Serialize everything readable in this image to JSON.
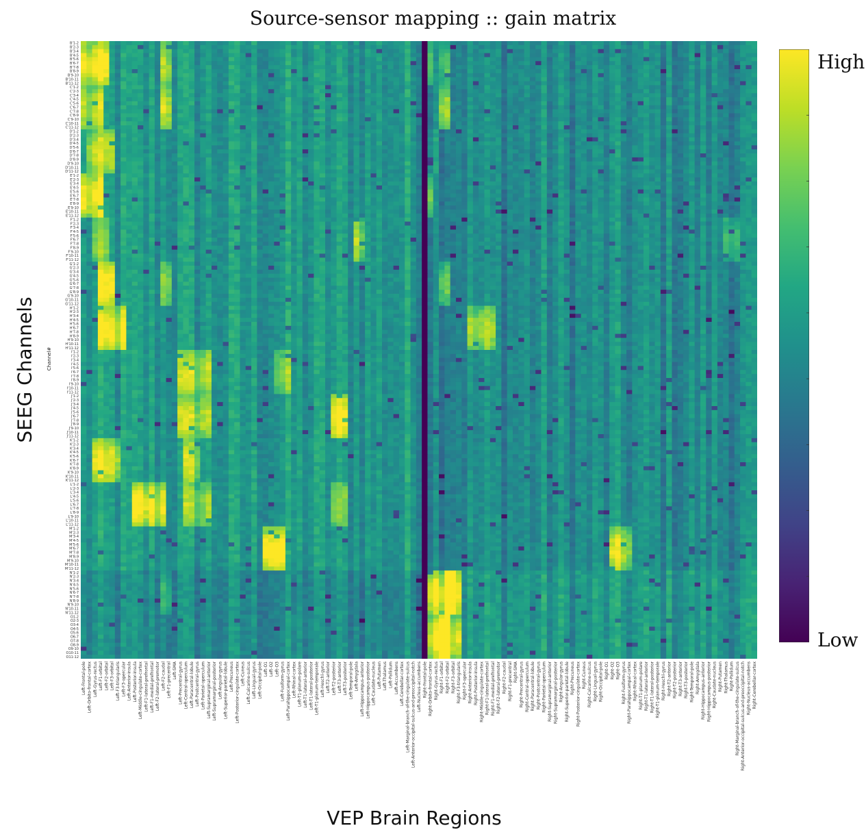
{
  "title": "Source-sensor mapping :: gain matrix",
  "xlabel": "VEP Brain Regions",
  "ylabel": "SEEG Channels",
  "ylabel_small": "Channel#",
  "colorbar": {
    "high_label": "High",
    "low_label": "Low",
    "colormap": "viridis"
  },
  "chart_data": {
    "type": "heatmap",
    "title": "Source-sensor mapping :: gain matrix",
    "xlabel": "VEP Brain Regions",
    "ylabel": "SEEG Channels",
    "colorbar": {
      "high": "High",
      "low": "Low"
    },
    "x_categories": [
      "Left-Frontal-pole",
      "Left-Orbito-frontal-cortex",
      "Left-Gyrus-rectus",
      "Left-F1-orbital",
      "Left-F2-orbital",
      "Left-F3-orbital",
      "Left-F3-triangularis",
      "Left-F3-opercular",
      "Left-Anterior-insula",
      "Left-Posterior-insula",
      "Left-Middle-cingulate-cortex",
      "Left-F1-lateral-prefrontal",
      "Left-F1-medial-prefrontal",
      "Left-F2-lateral-premotor",
      "Left-F2-caudal",
      "Left-F1-precentral",
      "Left-SMA",
      "Left-Precentral-gyrus",
      "Left-Central-operculum",
      "Left-Paracentral-lobule",
      "Left-Postcentral-gyrus",
      "Left-Parietal-operculum",
      "Left-Supramarginal-anterior",
      "Left-Supramarginal-posterior",
      "Left-Angular-gyrus",
      "Left-Superior-parietal-lobule",
      "Left-Precuneus",
      "Left-Posterior-cingulate-cortex",
      "Left-Cuneus",
      "Left-Calcarine-sulcus",
      "Left-Lingual-gyrus",
      "Left-Occipital-pole",
      "Left-O1",
      "Left-O2",
      "Left-O3",
      "Left-Fusiform-gyrus",
      "Left-Parahippocampal-cortex",
      "Left-Rhinal-cortex",
      "Left-T1-planum-polare",
      "Left-T1-lateral-anterior",
      "Left-T1-lateral-posterior",
      "Left-T1-planum-temporale",
      "Left-Heschl-gyrus",
      "Left-T2-anterior",
      "Left-T2-posterior",
      "Left-T3-anterior",
      "Left-T3-posterior",
      "Left-Temporal-pole",
      "Left-Amygdala",
      "Left-Hippocampus-anterior",
      "Left-Hippocampus-posterior",
      "Left-Caudate-nucleus",
      "Left-Putamen",
      "Left-Thalamus",
      "Left-Pallidum",
      "Left-Accumbens",
      "Left-Cerebellar-cortex",
      "Left-Marginal-branch-of-the-cingulate-sulcus",
      "Left-Anterior-occipital-sulcus-and-preoccipital-notch",
      "Left-Nucleus-accumbens",
      "Right-Frontal-pole",
      "Right-Orbito-frontal-cortex",
      "Right-Gyrus-rectus",
      "Right-F1-orbital",
      "Right-F2-orbital",
      "Right-F3-orbital",
      "Right-F3-triangularis",
      "Right-F3-opercular",
      "Right-Anterior-insula",
      "Right-Posterior-insula",
      "Right-Middle-cingulate-cortex",
      "Right-F1-lateral-prefrontal",
      "Right-F1-medial-prefrontal",
      "Right-F2-lateral-premotor",
      "Right-F2-caudal",
      "Right-F1-precentral",
      "Right-SMA",
      "Right-Precentral-gyrus",
      "Right-Central-operculum",
      "Right-Paracentral-lobule",
      "Right-Postcentral-gyrus",
      "Right-Parietal-operculum",
      "Right-Supramarginal-anterior",
      "Right-Supramarginal-posterior",
      "Right-Angular-gyrus",
      "Right-Superior-parietal-lobule",
      "Right-Precuneus",
      "Right-Posterior-cingulate-cortex",
      "Right-Cuneus",
      "Right-Calcarine-sulcus",
      "Right-Lingual-gyrus",
      "Right-Occipital-pole",
      "Right-O1",
      "Right-O2",
      "Right-O3",
      "Right-Fusiform-gyrus",
      "Right-Parahippocampal-cortex",
      "Right-Rhinal-cortex",
      "Right-T1-planum-polare",
      "Right-T1-lateral-anterior",
      "Right-T1-lateral-posterior",
      "Right-T1-planum-temporale",
      "Right-Heschl-gyrus",
      "Right-T2-anterior",
      "Right-T2-posterior",
      "Right-T3-anterior",
      "Right-T3-posterior",
      "Right-Temporal-pole",
      "Right-Amygdala",
      "Right-Hippocampus-anterior",
      "Right-Hippocampus-posterior",
      "Right-Caudate-nucleus",
      "Right-Putamen",
      "Right-Thalamus",
      "Right-Pallidum",
      "Right-Marginal-branch-of-the-cingulate-sulcus",
      "Right-Anterior-occipital-sulcus-and-preoccipital-notch",
      "Right-Nucleus-accumbens",
      "Right-Cerebellar-cortex"
    ],
    "y_categories": [
      "B'1-2",
      "B'2-3",
      "B'3-4",
      "B'4-5",
      "B'5-6",
      "B'6-7",
      "B'7-8",
      "B'8-9",
      "B'9-10",
      "B'10-11",
      "B'11-12",
      "C'1-2",
      "C'2-3",
      "C'3-4",
      "C'4-5",
      "C'5-6",
      "C'6-7",
      "C'7-8",
      "C'8-9",
      "C'9-10",
      "C'10-11",
      "C'11-12",
      "D'1-2",
      "D'2-3",
      "D'3-4",
      "D'4-5",
      "D'5-6",
      "D'6-7",
      "D'7-8",
      "D'8-9",
      "D'9-10",
      "D'10-11",
      "D'11-12",
      "E'1-2",
      "E'2-3",
      "E'3-4",
      "E'4-5",
      "E'5-6",
      "E'6-7",
      "E'7-8",
      "E'8-9",
      "E'9-10",
      "E'10-11",
      "E'11-12",
      "F'1-2",
      "F'2-3",
      "F'3-4",
      "F'4-5",
      "F'5-6",
      "F'6-7",
      "F'7-8",
      "F'8-9",
      "F'9-10",
      "F'10-11",
      "F'11-12",
      "G'1-2",
      "G'2-3",
      "G'3-4",
      "G'4-5",
      "G'5-6",
      "G'6-7",
      "G'7-8",
      "G'8-9",
      "G'9-10",
      "G'10-11",
      "G'11-12",
      "H'1-2",
      "H'2-3",
      "H'3-4",
      "H'4-5",
      "H'5-6",
      "H'6-7",
      "H'7-8",
      "H'8-9",
      "H'9-10",
      "H'10-11",
      "H'11-12",
      "I'1-2",
      "I'2-3",
      "I'3-4",
      "I'4-5",
      "I'5-6",
      "I'6-7",
      "I'7-8",
      "I'8-9",
      "I'9-10",
      "I'10-11",
      "I'11-12",
      "J'1-2",
      "J'2-3",
      "J'3-4",
      "J'4-5",
      "J'5-6",
      "J'6-7",
      "J'7-8",
      "J'8-9",
      "J'9-10",
      "J'10-11",
      "J'11-12",
      "K'1-2",
      "K'2-3",
      "K'3-4",
      "K'4-5",
      "K'5-6",
      "K'6-7",
      "K'7-8",
      "K'8-9",
      "K'9-10",
      "K'10-11",
      "K'11-12",
      "L'1-2",
      "L'2-3",
      "L'3-4",
      "L'4-5",
      "L'5-6",
      "L'6-7",
      "L'7-8",
      "L'8-9",
      "L'9-10",
      "L'10-11",
      "L'11-12",
      "M'1-2",
      "M'2-3",
      "M'3-4",
      "M'4-5",
      "M'5-6",
      "M'6-7",
      "M'7-8",
      "M'8-9",
      "M'9-10",
      "M'10-11",
      "M'11-12",
      "N'1-2",
      "N'2-3",
      "N'3-4",
      "N'4-5",
      "N'5-6",
      "N'6-7",
      "N'7-8",
      "N'8-9",
      "N'9-10",
      "N'10-11",
      "N'11-12",
      "O1-2",
      "O2-3",
      "O3-4",
      "O4-5",
      "O5-6",
      "O6-7",
      "O7-8",
      "O8-9",
      "O9-10",
      "O10-11",
      "O11-12"
    ],
    "row_groups": [
      11,
      11,
      11,
      11,
      11,
      11,
      11,
      11,
      11,
      11,
      11,
      11,
      11,
      11
    ],
    "dark_columns": [
      60,
      119
    ],
    "value_range": [
      "Low",
      "High"
    ]
  }
}
